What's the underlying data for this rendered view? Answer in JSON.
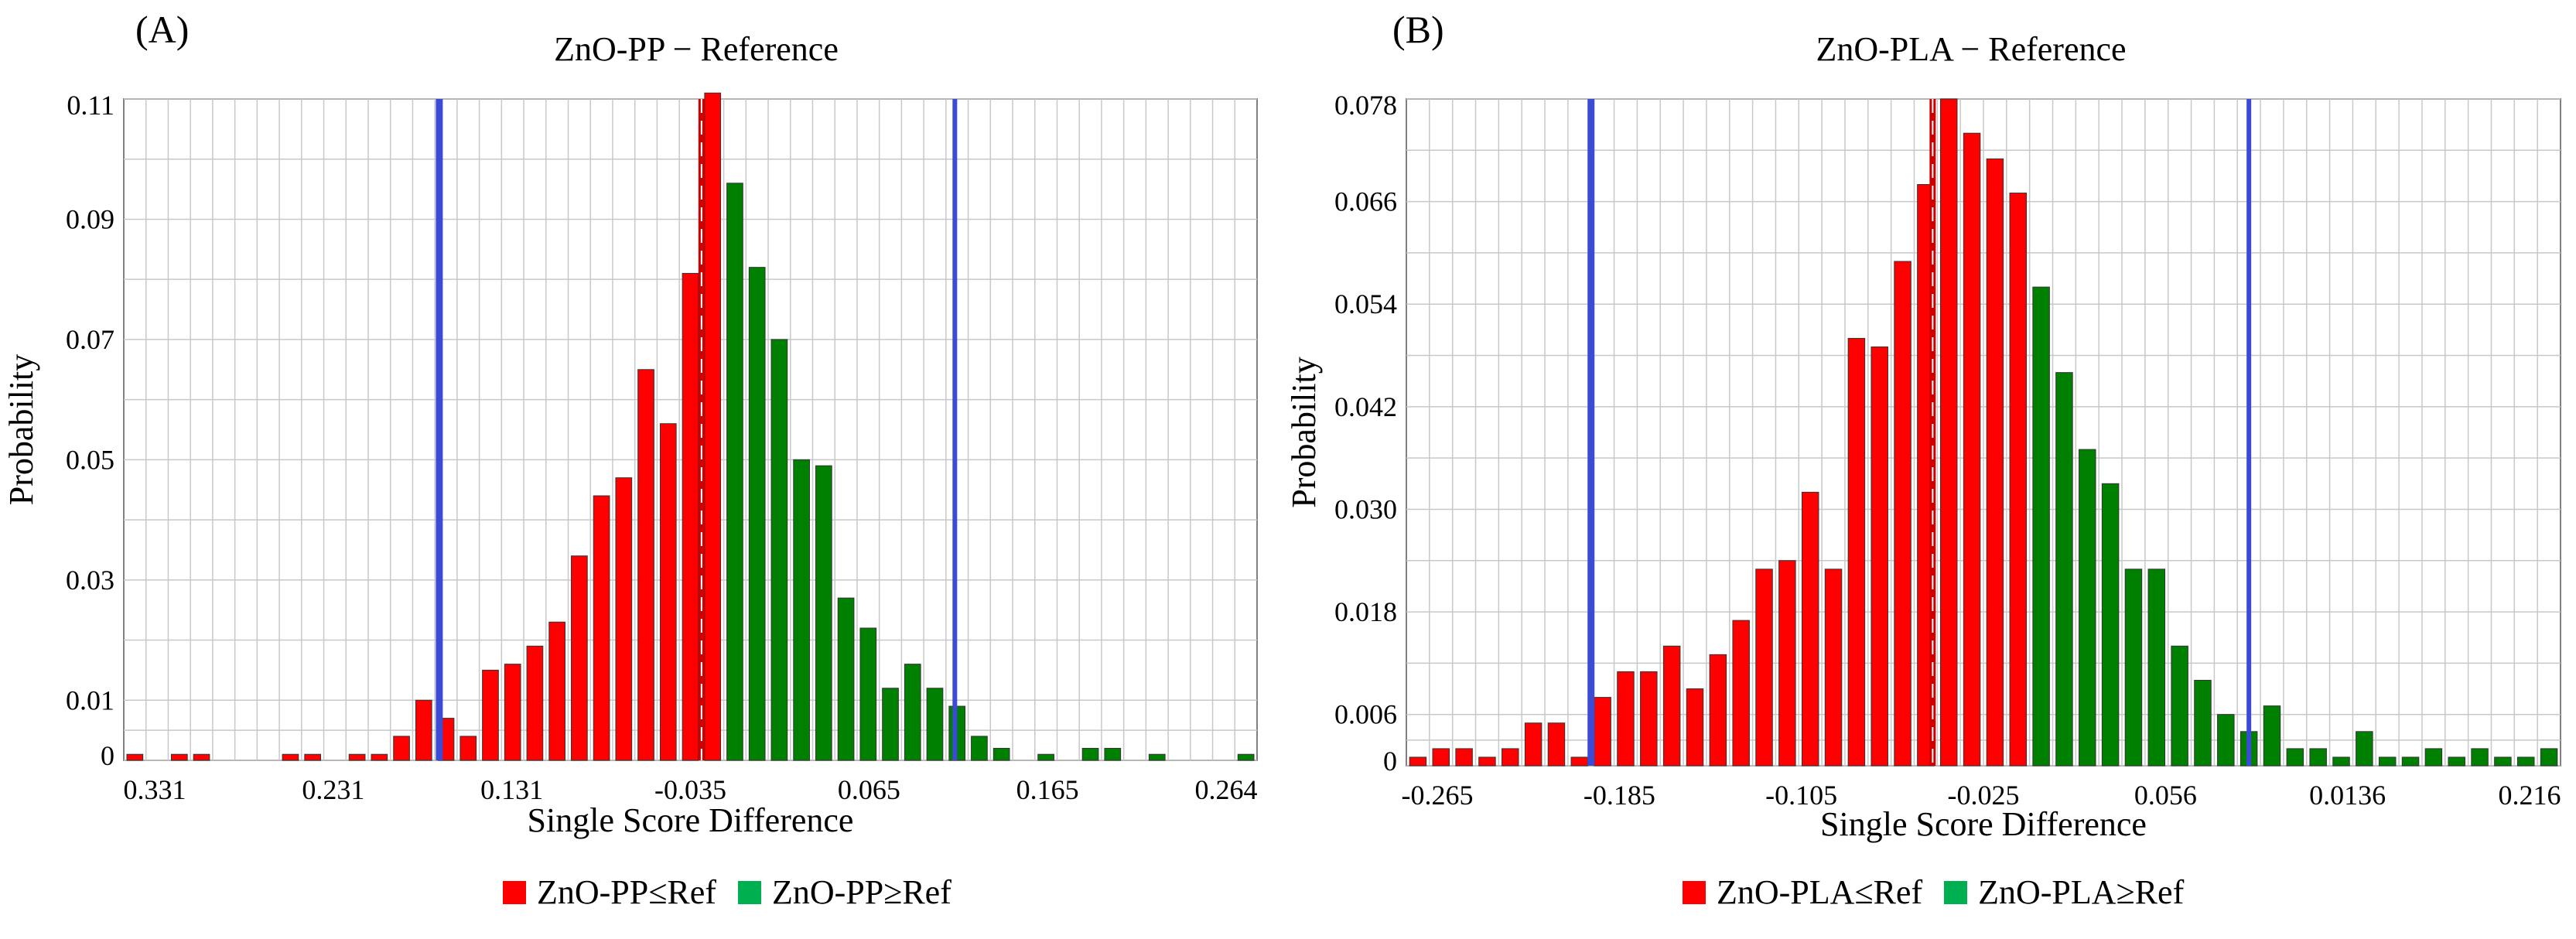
{
  "chart_data": [
    {
      "type": "bar",
      "panel_label": "(A)",
      "title": "ZnO-PP − Reference",
      "xlabel": "Single Score Difference",
      "ylabel": "Probability",
      "ylim": [
        0,
        0.11
      ],
      "y_ticks": [
        "0",
        "0.01",
        "0.03",
        "0.05",
        "0.07",
        "0.09",
        "0.11"
      ],
      "y_tick_values": [
        0,
        0.01,
        0.03,
        0.05,
        0.07,
        0.09,
        0.11
      ],
      "x_ticks": [
        "0.331",
        "0.231",
        "0.131",
        "-0.035",
        "0.065",
        "0.165",
        "0.264"
      ],
      "grid": true,
      "colors": {
        "le": "#ff0000",
        "ge": "#008000",
        "confidence": "#3c4bd6",
        "mean": "#cc0000",
        "grid": "#c8c8c8"
      },
      "values": [
        0.001,
        0,
        0.001,
        0.001,
        0,
        0,
        0,
        0.001,
        0.001,
        0,
        0.001,
        0.001,
        0.004,
        0.01,
        0.007,
        0.004,
        0.015,
        0.016,
        0.019,
        0.023,
        0.034,
        0.044,
        0.047,
        0.065,
        0.056,
        0.081,
        0.111,
        0.096,
        0.082,
        0.07,
        0.05,
        0.049,
        0.027,
        0.022,
        0.012,
        0.016,
        0.012,
        0.009,
        0.004,
        0.002,
        0,
        0.001,
        0,
        0.002,
        0.002,
        0,
        0.001,
        0,
        0,
        0,
        0.001
      ],
      "le_count": 27,
      "lines": {
        "lower_ci_bin": 14.2,
        "upper_ci_bin": 37.4,
        "mean_bin": 26.0
      },
      "legend": [
        "ZnO-PP≤Ref",
        "ZnO-PP≥Ref"
      ]
    },
    {
      "type": "bar",
      "panel_label": "(B)",
      "title": "ZnO-PLA − Reference",
      "xlabel": "Single Score Difference",
      "ylabel": "Probability",
      "ylim": [
        0,
        0.078
      ],
      "y_ticks": [
        "0",
        "0.006",
        "0.018",
        "0.030",
        "0.042",
        "0.054",
        "0.066",
        "0.078"
      ],
      "y_tick_values": [
        0,
        0.006,
        0.018,
        0.03,
        0.042,
        0.054,
        0.066,
        0.078
      ],
      "x_ticks": [
        "-0.265",
        "-0.185",
        "-0.105",
        "-0.025",
        "0.056",
        "0.0136",
        "0.216"
      ],
      "grid": true,
      "colors": {
        "le": "#ff0000",
        "ge": "#008000",
        "confidence": "#3c4bd6",
        "mean": "#cc0000",
        "grid": "#c8c8c8"
      },
      "values": [
        0.001,
        0.002,
        0.002,
        0.001,
        0.002,
        0.005,
        0.005,
        0.001,
        0.008,
        0.011,
        0.011,
        0.014,
        0.009,
        0.013,
        0.017,
        0.023,
        0.024,
        0.032,
        0.023,
        0.05,
        0.049,
        0.059,
        0.068,
        0.078,
        0.074,
        0.071,
        0.067,
        0.056,
        0.046,
        0.037,
        0.033,
        0.023,
        0.023,
        0.014,
        0.01,
        0.006,
        0.004,
        0.007,
        0.002,
        0.002,
        0.001,
        0.004,
        0.001,
        0.001,
        0.002,
        0.001,
        0.002,
        0.001,
        0.001,
        0.002
      ],
      "le_count": 27,
      "lines": {
        "lower_ci_bin": 8.0,
        "upper_ci_bin": 36.5,
        "mean_bin": 22.8
      },
      "legend": [
        "ZnO-PLA≤Ref",
        "ZnO-PLA≥Ref"
      ]
    }
  ]
}
